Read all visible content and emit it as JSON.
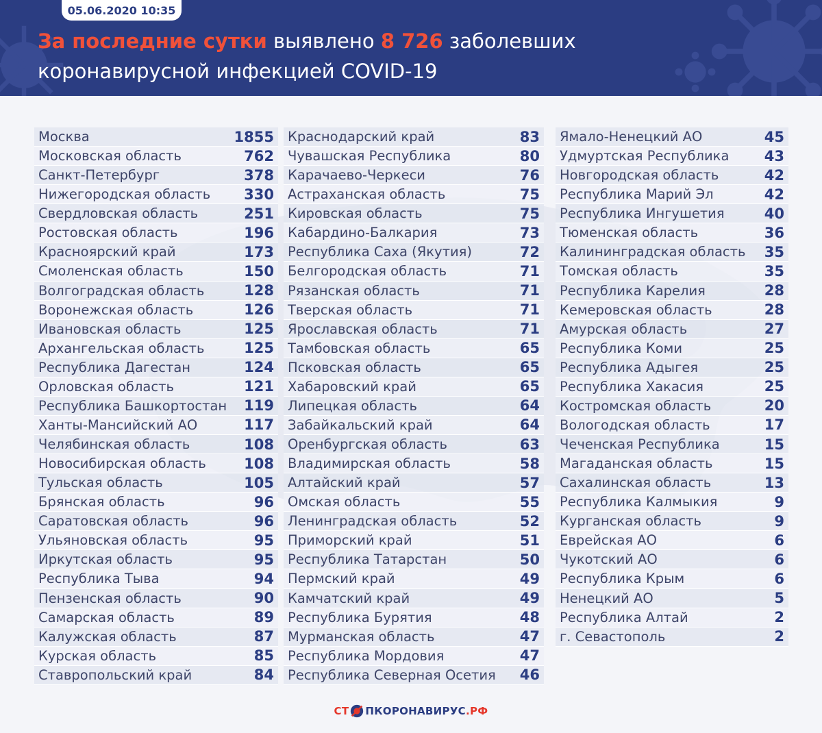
{
  "header": {
    "date": "05.06.2020 10:35",
    "headline_part1": "За последние сутки",
    "headline_part2": " выявлено ",
    "headline_number": "8 726",
    "headline_part3": " заболевших",
    "headline_line2": "коронавирусной инфекцией COVID-19"
  },
  "columns": [
    [
      {
        "name": "Москва",
        "value": "1855"
      },
      {
        "name": "Московская область",
        "value": "762"
      },
      {
        "name": "Санкт-Петербург",
        "value": "378"
      },
      {
        "name": "Нижегородская область",
        "value": "330"
      },
      {
        "name": "Свердловская область",
        "value": "251"
      },
      {
        "name": "Ростовская область",
        "value": "196"
      },
      {
        "name": "Красноярский край",
        "value": "173"
      },
      {
        "name": "Смоленская область",
        "value": "150"
      },
      {
        "name": "Волгоградская область",
        "value": "128"
      },
      {
        "name": "Воронежская область",
        "value": "126"
      },
      {
        "name": "Ивановская область",
        "value": "125"
      },
      {
        "name": "Архангельская область",
        "value": "125"
      },
      {
        "name": "Республика Дагестан",
        "value": "124"
      },
      {
        "name": "Орловская область",
        "value": "121"
      },
      {
        "name": "Республика Башкортостан",
        "value": "119"
      },
      {
        "name": "Ханты-Мансийский АО",
        "value": "117"
      },
      {
        "name": "Челябинская область",
        "value": "108"
      },
      {
        "name": "Новосибирская область",
        "value": "108"
      },
      {
        "name": "Тульская область",
        "value": "105"
      },
      {
        "name": "Брянская область",
        "value": "96"
      },
      {
        "name": "Саратовская область",
        "value": "96"
      },
      {
        "name": "Ульяновская область",
        "value": "95"
      },
      {
        "name": "Иркутская область",
        "value": "95"
      },
      {
        "name": "Республика Тыва",
        "value": "94"
      },
      {
        "name": "Пензенская область",
        "value": "90"
      },
      {
        "name": "Самарская область",
        "value": "89"
      },
      {
        "name": "Калужская область",
        "value": "87"
      },
      {
        "name": "Курская область",
        "value": "85"
      },
      {
        "name": "Ставропольский край",
        "value": "84"
      }
    ],
    [
      {
        "name": "Краснодарский край",
        "value": "83"
      },
      {
        "name": "Чувашская Республика",
        "value": "80"
      },
      {
        "name": "Карачаево-Черкеси",
        "value": "76"
      },
      {
        "name": "Астраханская область",
        "value": "75"
      },
      {
        "name": "Кировская область",
        "value": "75"
      },
      {
        "name": "Кабардино-Балкария",
        "value": "73"
      },
      {
        "name": "Республика Саха (Якутия)",
        "value": "72"
      },
      {
        "name": "Белгородская область",
        "value": "71"
      },
      {
        "name": "Рязанская область",
        "value": "71"
      },
      {
        "name": "Тверская область",
        "value": "71"
      },
      {
        "name": "Ярославская область",
        "value": "71"
      },
      {
        "name": "Тамбовская область",
        "value": "65"
      },
      {
        "name": "Псковская область",
        "value": "65"
      },
      {
        "name": "Хабаровский край",
        "value": "65"
      },
      {
        "name": "Липецкая область",
        "value": "64"
      },
      {
        "name": "Забайкальский край",
        "value": "64"
      },
      {
        "name": "Оренбургская область",
        "value": "63"
      },
      {
        "name": "Владимирская область",
        "value": "58"
      },
      {
        "name": "Алтайский край",
        "value": "57"
      },
      {
        "name": "Омская область",
        "value": "55"
      },
      {
        "name": "Ленинградская область",
        "value": "52"
      },
      {
        "name": "Приморский край",
        "value": "51"
      },
      {
        "name": "Республика Татарстан",
        "value": "50"
      },
      {
        "name": "Пермский край",
        "value": "49"
      },
      {
        "name": "Камчатский край",
        "value": "49"
      },
      {
        "name": "Республика Бурятия",
        "value": "48"
      },
      {
        "name": "Мурманская область",
        "value": "47"
      },
      {
        "name": "Республика Мордовия",
        "value": "47"
      },
      {
        "name": "Республика Северная Осетия",
        "value": "46"
      }
    ],
    [
      {
        "name": "Ямало-Ненецкий АО",
        "value": "45"
      },
      {
        "name": "Удмуртская Республика",
        "value": "43"
      },
      {
        "name": "Новгородская область",
        "value": "42"
      },
      {
        "name": "Республика Марий Эл",
        "value": "42"
      },
      {
        "name": "Республика Ингушетия",
        "value": "40"
      },
      {
        "name": "Тюменская область",
        "value": "36"
      },
      {
        "name": "Калининградская область",
        "value": "35"
      },
      {
        "name": "Томская область",
        "value": "35"
      },
      {
        "name": "Республика Карелия",
        "value": "28"
      },
      {
        "name": "Кемеровская область",
        "value": "28"
      },
      {
        "name": "Амурская область",
        "value": "27"
      },
      {
        "name": "Республика Коми",
        "value": "25"
      },
      {
        "name": "Республика Адыгея",
        "value": "25"
      },
      {
        "name": "Республика Хакасия",
        "value": "25"
      },
      {
        "name": "Костромская область",
        "value": "20"
      },
      {
        "name": "Вологодская область",
        "value": "17"
      },
      {
        "name": "Чеченская Республика",
        "value": "15"
      },
      {
        "name": "Магаданская область",
        "value": "15"
      },
      {
        "name": "Сахалинская область",
        "value": "13"
      },
      {
        "name": "Республика Калмыкия",
        "value": "9"
      },
      {
        "name": "Курганская область",
        "value": "9"
      },
      {
        "name": "Еврейская АО",
        "value": "6"
      },
      {
        "name": "Чукотский АО",
        "value": "6"
      },
      {
        "name": "Республика Крым",
        "value": "6"
      },
      {
        "name": "Ненецкий АО",
        "value": "5"
      },
      {
        "name": "Республика Алтай",
        "value": "2"
      },
      {
        "name": "г. Севастополь",
        "value": "2"
      }
    ]
  ],
  "footer": {
    "part1": "СТ",
    "part2": "ПКОРОНАВИРУС",
    "part3": ".РФ"
  },
  "colors": {
    "header_bg": "#2b3d82",
    "accent_red": "#f0513a",
    "value_blue": "#2b3d82"
  }
}
